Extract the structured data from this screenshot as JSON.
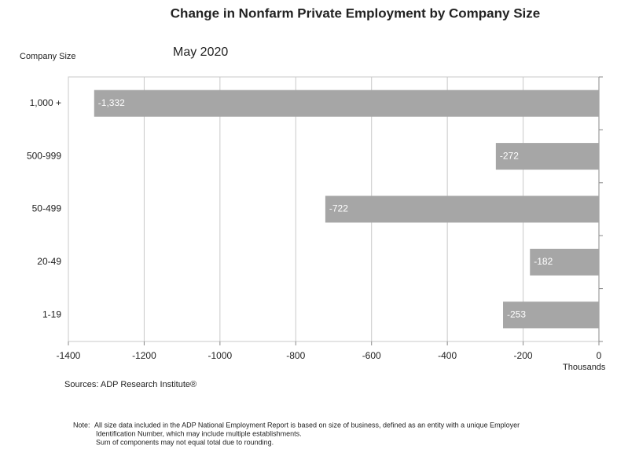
{
  "chart_data": {
    "type": "hbar",
    "title": "Change in Nonfarm Private Employment by Company Size",
    "subtitle": "May 2020",
    "y_axis_label": "Company Size",
    "x_axis_label": "Thousands",
    "categories": [
      "1,000 +",
      "500-999",
      "50-499",
      "20-49",
      "1-19"
    ],
    "values": [
      -1332,
      -272,
      -722,
      -182,
      -253
    ],
    "value_labels": [
      "-1,332",
      "-272",
      "-722",
      "-182",
      "-253"
    ],
    "color": "#a6a6a6",
    "xlim": [
      -1400,
      0
    ],
    "xticks": [
      -1400,
      -1200,
      -1000,
      -800,
      -600,
      -400,
      -200,
      0
    ],
    "grid": true,
    "source": "Sources: ADP Research Institute®",
    "note_label": "Note:",
    "note_lines": [
      "All size data included in the ADP National Employment Report is based on size of business, defined as an entity with a unique Employer",
      "Identification Number, which may include multiple establishments.",
      "Sum of components may not equal total due to rounding."
    ]
  }
}
